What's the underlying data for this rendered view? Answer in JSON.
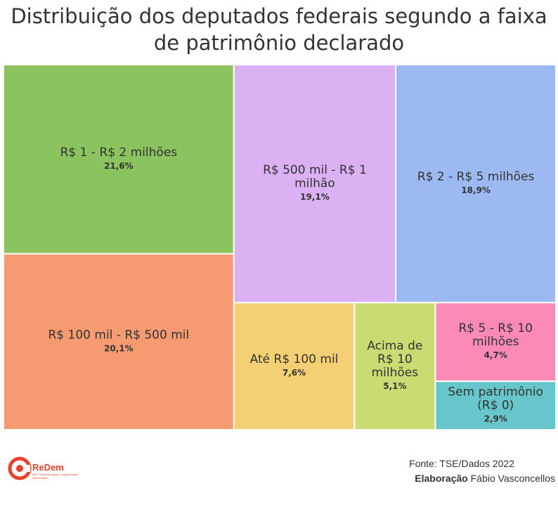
{
  "chart_data": {
    "type": "treemap",
    "title": "Distribuição dos deputados federais segundo a faixa de patrimônio declarado",
    "items": [
      {
        "label": "R$ 1 - R$ 2 milhões",
        "value": 21.6,
        "value_label": "21,6%",
        "color": "#8bc35f"
      },
      {
        "label": "R$ 100 mil - R$ 500 mil",
        "value": 20.1,
        "value_label": "20,1%",
        "color": "#f69b71"
      },
      {
        "label": "R$ 500 mil - R$ 1 milhão",
        "value": 19.1,
        "value_label": "19,1%",
        "color": "#dbb1f3"
      },
      {
        "label": "R$ 2 - R$ 5 milhões",
        "value": 18.9,
        "value_label": "18,9%",
        "color": "#9db9f2"
      },
      {
        "label": "Até R$ 100 mil",
        "value": 7.6,
        "value_label": "7,6%",
        "color": "#f5cf73"
      },
      {
        "label": "Acima de R$ 10 milhões",
        "value": 5.1,
        "value_label": "5,1%",
        "color": "#cbdb73"
      },
      {
        "label": "R$ 5 - R$ 10 milhões",
        "value": 4.7,
        "value_label": "4,7%",
        "color": "#fb8ab6"
      },
      {
        "label": "Sem patrimônio (R$ 0)",
        "value": 2.9,
        "value_label": "2,9%",
        "color": "#67c6cc"
      }
    ]
  },
  "footer": {
    "logo_name": "ReDem",
    "logo_sub": "INCT Representação e Legitimidade Democrática",
    "source": "Fonte: TSE/Dados 2022",
    "credit_label": "Elaboração",
    "credit_name": "Fábio Vasconcellos"
  }
}
